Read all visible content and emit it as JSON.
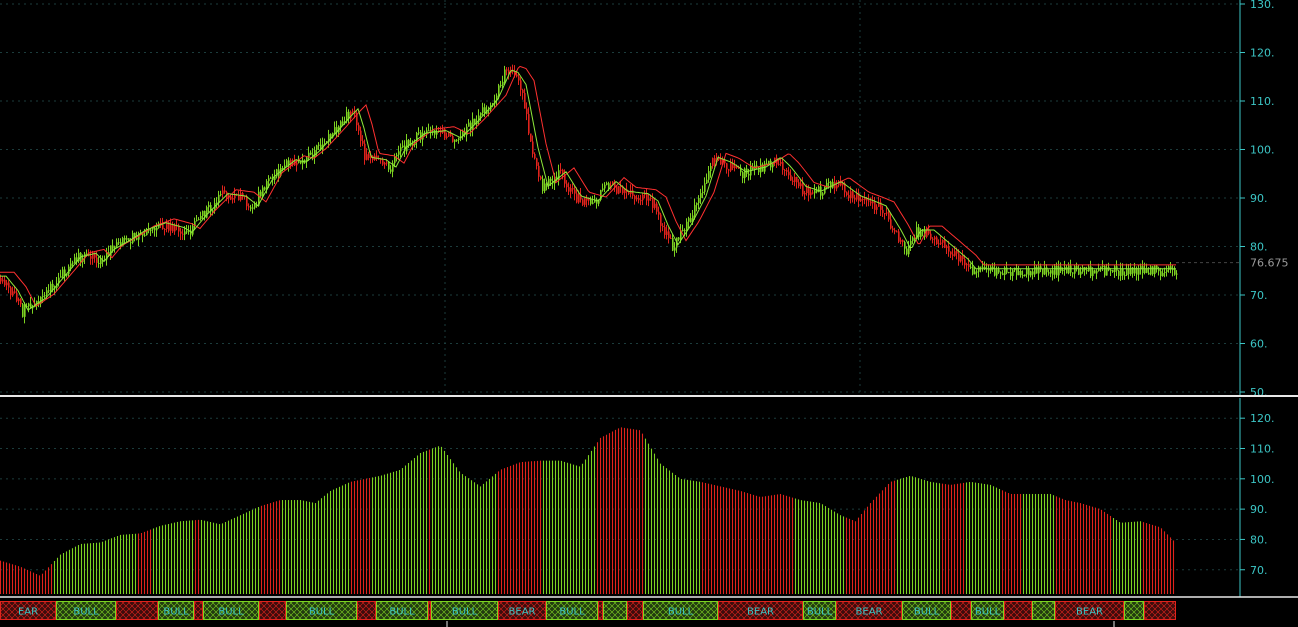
{
  "colors": {
    "background": "#000000",
    "bull": "#7dd321",
    "bear": "#e0231c",
    "ma_fast": "#8ee83a",
    "ma_slow": "#ff3030",
    "axis": "#3cc6c6",
    "grid": "#1c3c3c",
    "divider": "#e8e8e8",
    "band_bull_fill": "#223b10",
    "band_bear_fill": "#3c0c0c"
  },
  "chart_data": [
    {
      "type": "candlestick",
      "title": "",
      "ylim": [
        50,
        130
      ],
      "yticks": [
        "130.",
        "120.",
        "110.",
        "100.",
        "90.",
        "80.",
        "70.",
        "60.",
        "50."
      ],
      "last_price_label": "76.675",
      "last_price": 76.675,
      "keypoints": [
        [
          0,
          73.5
        ],
        [
          12,
          70.5
        ],
        [
          22,
          66.5
        ],
        [
          40,
          69
        ],
        [
          60,
          73.8
        ],
        [
          75,
          77.5
        ],
        [
          90,
          78.2
        ],
        [
          98,
          76.5
        ],
        [
          108,
          79
        ],
        [
          125,
          81
        ],
        [
          140,
          83
        ],
        [
          160,
          84.5
        ],
        [
          178,
          83.5
        ],
        [
          186,
          82.5
        ],
        [
          200,
          86
        ],
        [
          222,
          90.5
        ],
        [
          240,
          90
        ],
        [
          252,
          88
        ],
        [
          268,
          94
        ],
        [
          290,
          97.5
        ],
        [
          300,
          97
        ],
        [
          312,
          99
        ],
        [
          330,
          103
        ],
        [
          345,
          106.5
        ],
        [
          352,
          108
        ],
        [
          358,
          104
        ],
        [
          365,
          98
        ],
        [
          380,
          97.5
        ],
        [
          390,
          96
        ],
        [
          400,
          100
        ],
        [
          420,
          103
        ],
        [
          440,
          103.5
        ],
        [
          455,
          102
        ],
        [
          470,
          105
        ],
        [
          492,
          110
        ],
        [
          505,
          116
        ],
        [
          512,
          115.5
        ],
        [
          520,
          113
        ],
        [
          532,
          100
        ],
        [
          542,
          92
        ],
        [
          560,
          95
        ],
        [
          575,
          90
        ],
        [
          592,
          89
        ],
        [
          610,
          93
        ],
        [
          622,
          91
        ],
        [
          642,
          90.5
        ],
        [
          652,
          89
        ],
        [
          662,
          84
        ],
        [
          672,
          80
        ],
        [
          685,
          84
        ],
        [
          700,
          90
        ],
        [
          712,
          98
        ],
        [
          725,
          97
        ],
        [
          740,
          95
        ],
        [
          760,
          96
        ],
        [
          775,
          98
        ],
        [
          785,
          96
        ],
        [
          800,
          92
        ],
        [
          815,
          91
        ],
        [
          835,
          93
        ],
        [
          855,
          90
        ],
        [
          868,
          89
        ],
        [
          880,
          88
        ],
        [
          895,
          83
        ],
        [
          905,
          79
        ],
        [
          915,
          83
        ],
        [
          928,
          83
        ],
        [
          945,
          80
        ],
        [
          962,
          77
        ],
        [
          970,
          75
        ]
      ],
      "ma_fast_lag": 6,
      "ma_slow_lag": 14,
      "ma_slow_offset": 1.2
    },
    {
      "type": "bar",
      "title": "",
      "ylim": [
        62,
        126
      ],
      "yticks": [
        "120.",
        "110.",
        "100.",
        "90.",
        "80.",
        "70."
      ],
      "keypoints": [
        [
          0,
          73
        ],
        [
          20,
          71
        ],
        [
          40,
          68
        ],
        [
          60,
          75
        ],
        [
          80,
          78.5
        ],
        [
          100,
          79
        ],
        [
          120,
          81.5
        ],
        [
          140,
          82
        ],
        [
          160,
          84.5
        ],
        [
          180,
          86
        ],
        [
          200,
          86.5
        ],
        [
          220,
          85
        ],
        [
          240,
          88
        ],
        [
          260,
          91
        ],
        [
          280,
          93
        ],
        [
          300,
          93
        ],
        [
          315,
          92
        ],
        [
          330,
          96
        ],
        [
          350,
          99
        ],
        [
          365,
          100
        ],
        [
          380,
          101
        ],
        [
          400,
          103
        ],
        [
          420,
          108.5
        ],
        [
          440,
          111
        ],
        [
          460,
          102
        ],
        [
          480,
          97.5
        ],
        [
          500,
          103
        ],
        [
          520,
          105.5
        ],
        [
          540,
          106
        ],
        [
          560,
          106
        ],
        [
          580,
          104
        ],
        [
          600,
          113.5
        ],
        [
          620,
          117
        ],
        [
          640,
          116
        ],
        [
          660,
          105
        ],
        [
          680,
          100
        ],
        [
          700,
          99
        ],
        [
          720,
          97.5
        ],
        [
          740,
          96
        ],
        [
          760,
          94
        ],
        [
          780,
          95
        ],
        [
          800,
          93
        ],
        [
          820,
          92
        ],
        [
          840,
          88
        ],
        [
          855,
          86
        ],
        [
          870,
          92
        ],
        [
          890,
          99
        ],
        [
          910,
          101
        ],
        [
          930,
          99
        ],
        [
          950,
          98
        ],
        [
          970,
          99
        ],
        [
          990,
          98
        ],
        [
          1010,
          95
        ],
        [
          1030,
          95
        ],
        [
          1050,
          95
        ],
        [
          1065,
          93
        ],
        [
          1080,
          92
        ],
        [
          1100,
          90
        ],
        [
          1120,
          85.5
        ],
        [
          1140,
          86
        ],
        [
          1160,
          84
        ],
        [
          1175,
          79
        ]
      ],
      "segments": [
        [
          "bear",
          0,
          52
        ],
        [
          "bull",
          52,
          137
        ],
        [
          "bear",
          137,
          152
        ],
        [
          "bull",
          152,
          193
        ],
        [
          "bear",
          193,
          200
        ],
        [
          "bull",
          200,
          260
        ],
        [
          "bear",
          260,
          282
        ],
        [
          "bull",
          282,
          350
        ],
        [
          "bear",
          350,
          372
        ],
        [
          "bull",
          372,
          428
        ],
        [
          "bear",
          428,
          432
        ],
        [
          "bull",
          432,
          497
        ],
        [
          "bear",
          497,
          542
        ],
        [
          "bull",
          542,
          597
        ],
        [
          "bear",
          597,
          643
        ],
        [
          "bull",
          643,
          702
        ],
        [
          "bear",
          702,
          795
        ],
        [
          "bull",
          795,
          845
        ],
        [
          "bear",
          845,
          895
        ],
        [
          "bull",
          895,
          940
        ],
        [
          "bear",
          940,
          965
        ],
        [
          "bull",
          965,
          1000
        ],
        [
          "bear",
          1000,
          1022
        ],
        [
          "bull",
          1022,
          1055
        ],
        [
          "bear",
          1055,
          1112
        ],
        [
          "bull",
          1112,
          1142
        ],
        [
          "bear",
          1142,
          1176
        ]
      ]
    }
  ],
  "regime_bar": {
    "segments": [
      {
        "state": "bear",
        "label": "EAR"
      },
      {
        "state": "bull",
        "label": "BULL"
      },
      {
        "state": "bear",
        "label": ""
      },
      {
        "state": "bull",
        "label": "BULL"
      },
      {
        "state": "bear",
        "label": ""
      },
      {
        "state": "bull",
        "label": "BULL"
      },
      {
        "state": "bear",
        "label": ""
      },
      {
        "state": "bull",
        "label": "BULL"
      },
      {
        "state": "bear",
        "label": ""
      },
      {
        "state": "bull",
        "label": "BULL"
      },
      {
        "state": "bear",
        "label": ""
      },
      {
        "state": "bull",
        "label": "BULL"
      },
      {
        "state": "bear",
        "label": "BEAR"
      },
      {
        "state": "bull",
        "label": "BULL"
      },
      {
        "state": "bear",
        "label": ""
      },
      {
        "state": "bull",
        "label": ""
      },
      {
        "state": "bear",
        "label": ""
      },
      {
        "state": "bull",
        "label": "BULL"
      },
      {
        "state": "bear",
        "label": "BEAR"
      },
      {
        "state": "bull",
        "label": "BULL"
      },
      {
        "state": "bear",
        "label": "BEAR"
      },
      {
        "state": "bull",
        "label": "BULL"
      },
      {
        "state": "bear",
        "label": ""
      },
      {
        "state": "bull",
        "label": "BULL"
      },
      {
        "state": "bear",
        "label": ""
      },
      {
        "state": "bull",
        "label": ""
      },
      {
        "state": "bear",
        "label": "BEAR"
      },
      {
        "state": "bull",
        "label": ""
      },
      {
        "state": "bear",
        "label": ""
      }
    ]
  }
}
